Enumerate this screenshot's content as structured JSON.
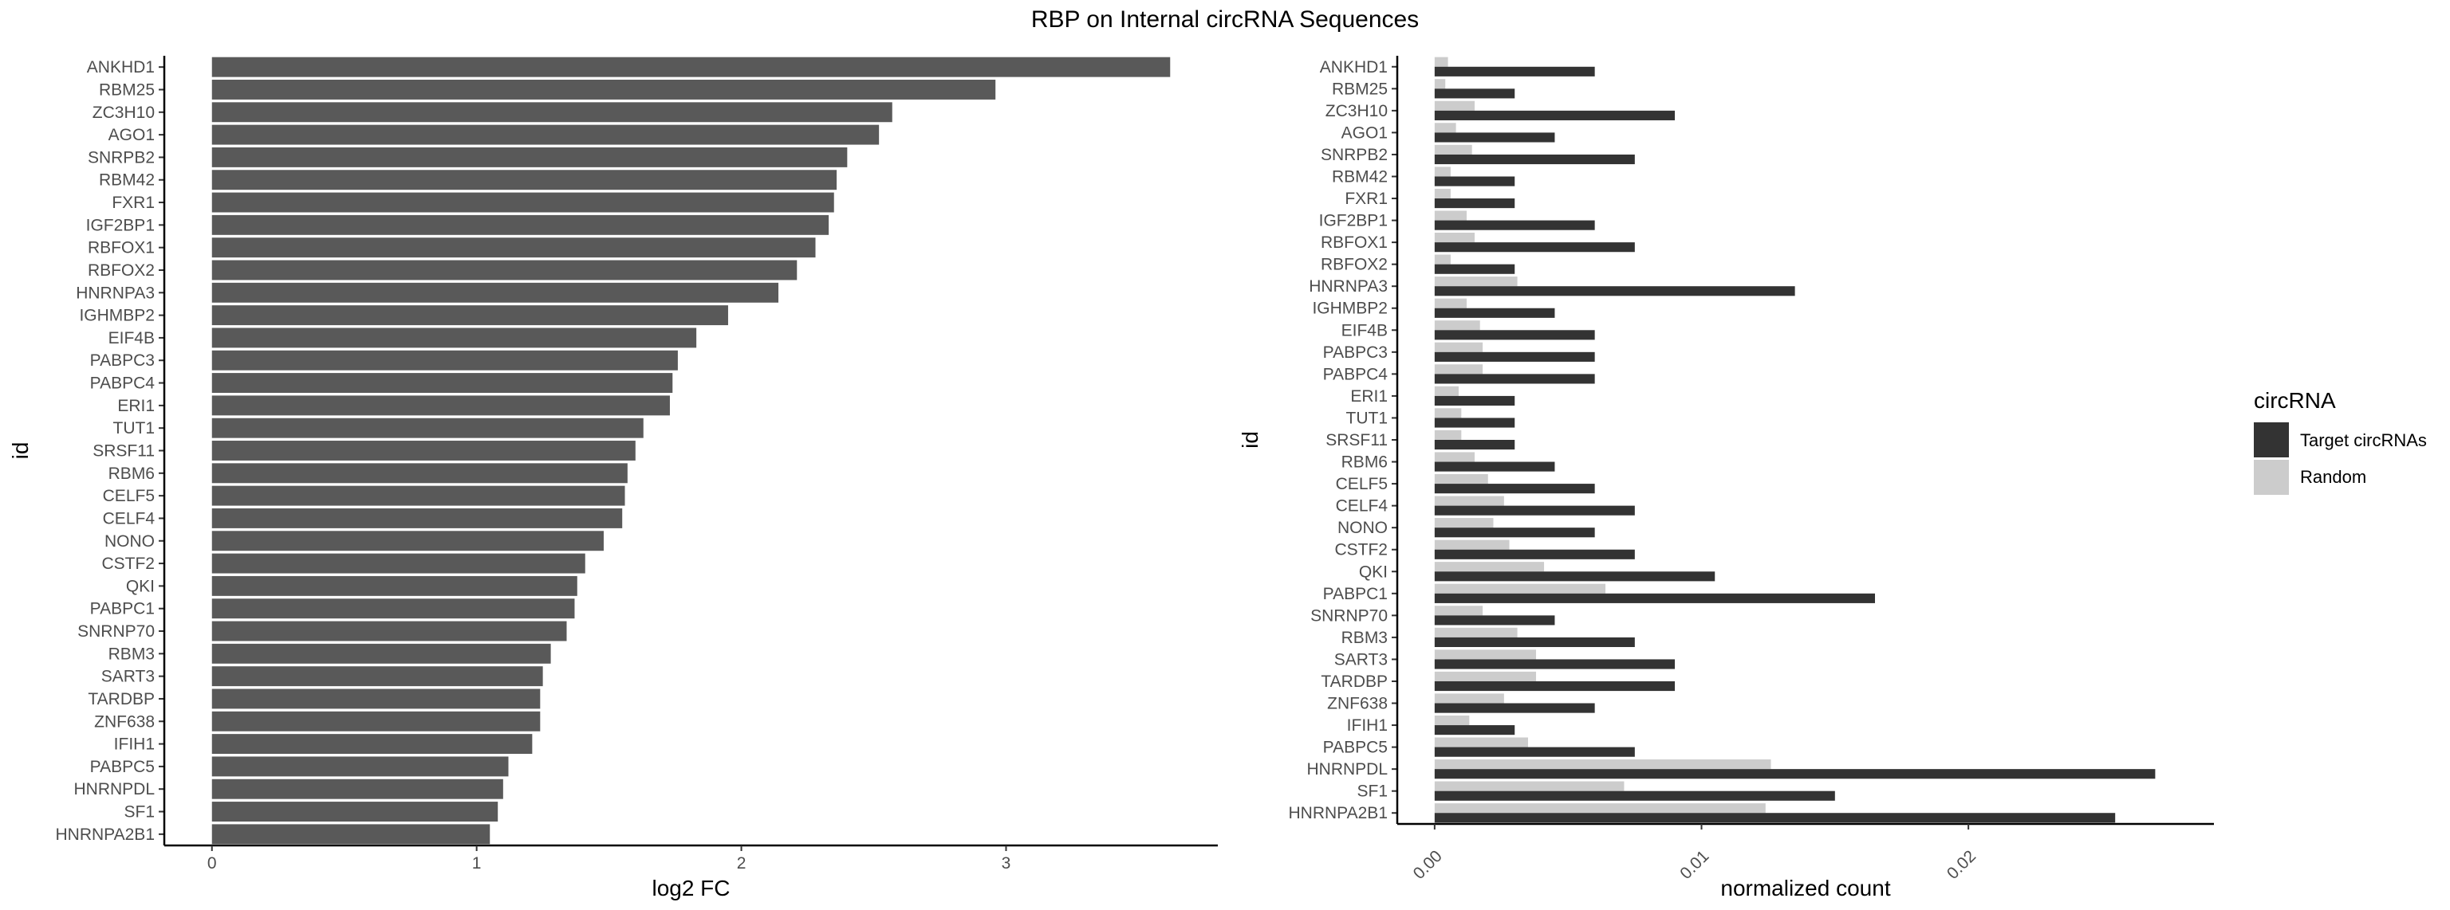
{
  "title": "RBP on Internal circRNA Sequences",
  "colors": {
    "left_bar": "#595959",
    "target": "#333333",
    "random": "#cccccc",
    "axis": "#000000"
  },
  "chart_data": [
    {
      "type": "bar",
      "orientation": "horizontal",
      "xlabel": "log2 FC",
      "ylabel": "id",
      "xlim": [
        -0.18,
        3.8
      ],
      "xticks": [
        0,
        1,
        2,
        3
      ],
      "categories": [
        "ANKHD1",
        "RBM25",
        "ZC3H10",
        "AGO1",
        "SNRPB2",
        "RBM42",
        "FXR1",
        "IGF2BP1",
        "RBFOX1",
        "RBFOX2",
        "HNRNPA3",
        "IGHMBP2",
        "EIF4B",
        "PABPC3",
        "PABPC4",
        "ERI1",
        "TUT1",
        "SRSF11",
        "RBM6",
        "CELF5",
        "CELF4",
        "NONO",
        "CSTF2",
        "QKI",
        "PABPC1",
        "SNRNP70",
        "RBM3",
        "SART3",
        "TARDBP",
        "ZNF638",
        "IFIH1",
        "PABPC5",
        "HNRNPDL",
        "SF1",
        "HNRNPA2B1"
      ],
      "values": [
        3.62,
        2.96,
        2.57,
        2.52,
        2.4,
        2.36,
        2.35,
        2.33,
        2.28,
        2.21,
        2.14,
        1.95,
        1.83,
        1.76,
        1.74,
        1.73,
        1.63,
        1.6,
        1.57,
        1.56,
        1.55,
        1.48,
        1.41,
        1.38,
        1.37,
        1.34,
        1.28,
        1.25,
        1.24,
        1.24,
        1.21,
        1.12,
        1.1,
        1.08,
        1.05
      ]
    },
    {
      "type": "bar",
      "orientation": "horizontal",
      "grouped": true,
      "xlabel": "normalized count",
      "ylabel": "id",
      "xlim": [
        -0.0014,
        0.0292
      ],
      "xticks": [
        0.0,
        0.01,
        0.02
      ],
      "xtick_labels": [
        "0.00",
        "0.01",
        "0.02"
      ],
      "categories": [
        "ANKHD1",
        "RBM25",
        "ZC3H10",
        "AGO1",
        "SNRPB2",
        "RBM42",
        "FXR1",
        "IGF2BP1",
        "RBFOX1",
        "RBFOX2",
        "HNRNPA3",
        "IGHMBP2",
        "EIF4B",
        "PABPC3",
        "PABPC4",
        "ERI1",
        "TUT1",
        "SRSF11",
        "RBM6",
        "CELF5",
        "CELF4",
        "NONO",
        "CSTF2",
        "QKI",
        "PABPC1",
        "SNRNP70",
        "RBM3",
        "SART3",
        "TARDBP",
        "ZNF638",
        "IFIH1",
        "PABPC5",
        "HNRNPDL",
        "SF1",
        "HNRNPA2B1"
      ],
      "series": [
        {
          "name": "Target circRNAs",
          "values": [
            0.006,
            0.003,
            0.009,
            0.0045,
            0.0075,
            0.003,
            0.003,
            0.006,
            0.0075,
            0.003,
            0.0135,
            0.0045,
            0.006,
            0.006,
            0.006,
            0.003,
            0.003,
            0.003,
            0.0045,
            0.006,
            0.0075,
            0.006,
            0.0075,
            0.0105,
            0.0165,
            0.0045,
            0.0075,
            0.009,
            0.009,
            0.006,
            0.003,
            0.0075,
            0.027,
            0.015,
            0.0255
          ]
        },
        {
          "name": "Random",
          "values": [
            0.0005,
            0.0004,
            0.0015,
            0.0008,
            0.0014,
            0.0006,
            0.0006,
            0.0012,
            0.0015,
            0.0006,
            0.0031,
            0.0012,
            0.0017,
            0.0018,
            0.0018,
            0.0009,
            0.001,
            0.001,
            0.0015,
            0.002,
            0.0026,
            0.0022,
            0.0028,
            0.0041,
            0.0064,
            0.0018,
            0.0031,
            0.0038,
            0.0038,
            0.0026,
            0.0013,
            0.0035,
            0.0126,
            0.0071,
            0.0124
          ]
        }
      ],
      "legend": {
        "title": "circRNA",
        "position": "right"
      }
    }
  ]
}
